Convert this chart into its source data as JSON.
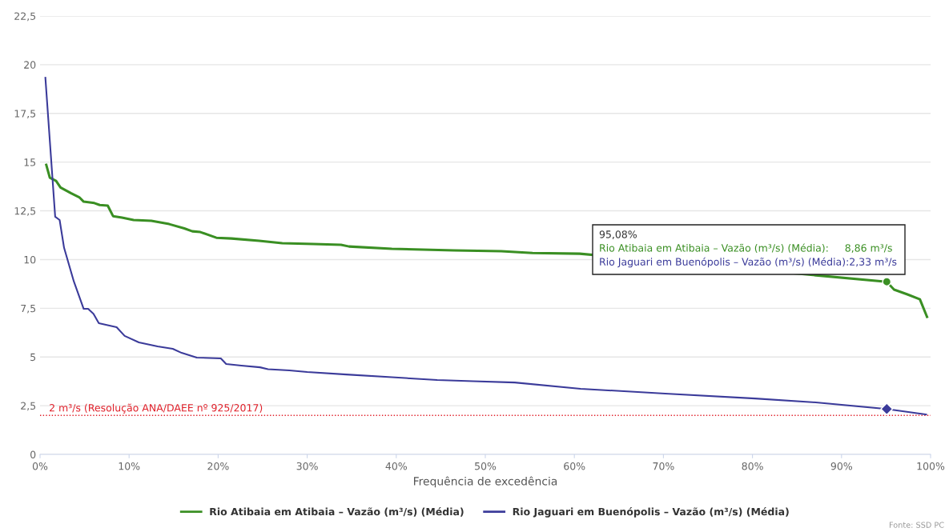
{
  "chart_data": {
    "type": "line",
    "xlabel": "Frequência de excedência",
    "xlim": [
      0,
      100
    ],
    "xticks": [
      {
        "value": 0,
        "label": "0%"
      },
      {
        "value": 10,
        "label": "10%"
      },
      {
        "value": 20,
        "label": "20%"
      },
      {
        "value": 30,
        "label": "30%"
      },
      {
        "value": 40,
        "label": "40%"
      },
      {
        "value": 50,
        "label": "50%"
      },
      {
        "value": 60,
        "label": "60%"
      },
      {
        "value": 70,
        "label": "70%"
      },
      {
        "value": 80,
        "label": "80%"
      },
      {
        "value": 90,
        "label": "90%"
      },
      {
        "value": 100,
        "label": "100%"
      }
    ],
    "ylim": [
      0,
      22.5
    ],
    "yticks": [
      0,
      {
        "value": 2.5,
        "label": "2,5"
      },
      5,
      {
        "value": 7.5,
        "label": "7,5"
      },
      10,
      {
        "value": 12.5,
        "label": "12,5"
      },
      15,
      {
        "value": 17.5,
        "label": "17,5"
      },
      20,
      {
        "value": 22.5,
        "label": "22,5"
      }
    ],
    "grid": "y",
    "legend": "bottom",
    "series": [
      {
        "name": "Rio Atibaia em Atibaia – Vazão (m³/s) (Média)",
        "color": "#3a8f23",
        "x": [
          0.7,
          1.1,
          1.8,
          2.3,
          3.5,
          4.4,
          4.9,
          6.1,
          6.7,
          7.6,
          8.2,
          9.2,
          10.5,
          12.5,
          14.5,
          16.2,
          17.1,
          18,
          19.8,
          21.5,
          24.6,
          27.2,
          30.7,
          33.8,
          34.7,
          39.5,
          46.5,
          51.8,
          55.3,
          60.6,
          95.08,
          95.9,
          97.4,
          98.8,
          99.6
        ],
        "values": [
          14.86,
          14.2,
          14.04,
          13.7,
          13.4,
          13.2,
          12.97,
          12.9,
          12.8,
          12.77,
          12.23,
          12.15,
          12.03,
          11.99,
          11.82,
          11.6,
          11.45,
          11.41,
          11.12,
          11.08,
          10.96,
          10.84,
          10.8,
          10.76,
          10.67,
          10.55,
          10.47,
          10.43,
          10.34,
          10.3,
          8.86,
          8.46,
          8.21,
          7.96,
          7.06
        ]
      },
      {
        "name": "Rio Jaguari em Buenópolis – Vazão (m³/s) (Média)",
        "color": "#3b3b9a",
        "x": [
          0.6,
          1.7,
          2.2,
          2.7,
          3.8,
          4.9,
          5.4,
          6.0,
          6.6,
          8.6,
          9.5,
          11.1,
          13.2,
          14.9,
          15.9,
          17.6,
          20.3,
          20.9,
          22.6,
          24.7,
          25.6,
          28,
          30,
          34.4,
          39.5,
          44.6,
          48.6,
          53.3,
          60.7,
          70.2,
          80.3,
          87.1,
          95.08,
          99.5
        ],
        "values": [
          19.33,
          12.2,
          12.03,
          10.6,
          8.87,
          7.47,
          7.47,
          7.22,
          6.73,
          6.53,
          6.08,
          5.75,
          5.54,
          5.42,
          5.21,
          4.97,
          4.93,
          4.64,
          4.56,
          4.47,
          4.37,
          4.31,
          4.23,
          4.1,
          3.96,
          3.82,
          3.76,
          3.69,
          3.37,
          3.12,
          2.87,
          2.67,
          2.33,
          2.05
        ]
      },
      {
        "type": "scatter",
        "color": "#3a8f23",
        "marker": "circle",
        "x": [
          95.08
        ],
        "values": [
          8.86
        ]
      },
      {
        "type": "scatter",
        "color": "#3b3b9a",
        "marker": "diamond",
        "x": [
          95.08
        ],
        "values": [
          2.33
        ]
      }
    ],
    "ref_lines": [
      {
        "axis": "y",
        "value": 2,
        "label": "2 m³/s (Resolução ANA/DAEE nº 925/2017)",
        "color": "#e0202a",
        "line_style": "dotted"
      }
    ],
    "annotations": [
      "95,08%",
      "Rio Atibaia em Atibaia – Vazão (m³/s) (Média):     8,86 m³/s",
      "Rio Jaguari em Buenópolis – Vazão (m³/s) (Média):2,33 m³/s",
      "Fonte: SSD PC"
    ]
  }
}
